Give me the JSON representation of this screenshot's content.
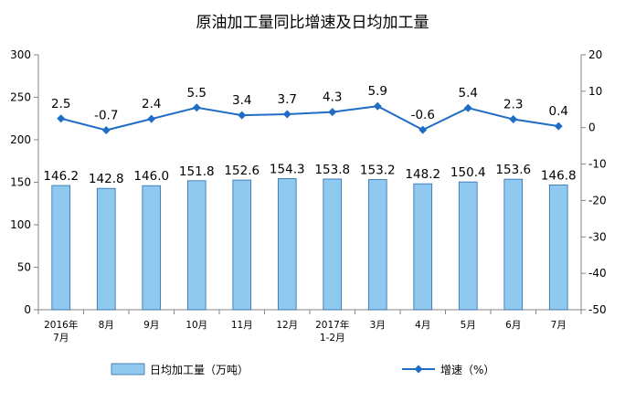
{
  "chart_data": {
    "type": "bar",
    "title": "原油加工量同比增速及日均加工量",
    "categories": [
      [
        "2016年",
        "7月"
      ],
      [
        "8月"
      ],
      [
        "9月"
      ],
      [
        "10月"
      ],
      [
        "11月"
      ],
      [
        "12月"
      ],
      [
        "2017年",
        "1-2月"
      ],
      [
        "3月"
      ],
      [
        "4月"
      ],
      [
        "5月"
      ],
      [
        "6月"
      ],
      [
        "7月"
      ]
    ],
    "series": [
      {
        "name": "日均加工量（万吨）",
        "type": "bar",
        "axis": "left",
        "color": "#8fc9f0",
        "values": [
          146.2,
          142.8,
          146.0,
          151.8,
          152.6,
          154.3,
          153.8,
          153.2,
          148.2,
          150.4,
          153.6,
          146.8
        ],
        "labels": [
          "146.2",
          "142.8",
          "146.0",
          "151.8",
          "152.6",
          "154.3",
          "153.8",
          "153.2",
          "148.2",
          "150.4",
          "153.6",
          "146.8"
        ]
      },
      {
        "name": "增速（%）",
        "type": "line",
        "axis": "right",
        "color": "#1f6dc4",
        "values": [
          2.5,
          -0.7,
          2.4,
          5.5,
          3.4,
          3.7,
          4.3,
          5.9,
          -0.6,
          5.4,
          2.3,
          0.4
        ],
        "labels": [
          "2.5",
          "-0.7",
          "2.4",
          "5.5",
          "3.4",
          "3.7",
          "4.3",
          "5.9",
          "-0.6",
          "5.4",
          "2.3",
          "0.4"
        ]
      }
    ],
    "y_left": {
      "min": 0,
      "max": 300,
      "ticks": [
        "0",
        "50",
        "100",
        "150",
        "200",
        "250",
        "300"
      ]
    },
    "y_right": {
      "min": -50,
      "max": 20,
      "ticks": [
        "-50",
        "-40",
        "-30",
        "-20",
        "-10",
        "0",
        "10",
        "20"
      ]
    },
    "grid": false,
    "legend": "bottom"
  }
}
